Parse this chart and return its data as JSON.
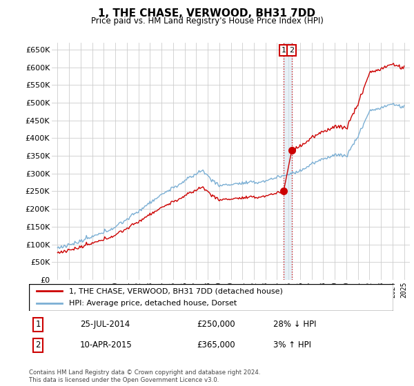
{
  "title": "1, THE CHASE, VERWOOD, BH31 7DD",
  "subtitle": "Price paid vs. HM Land Registry's House Price Index (HPI)",
  "ylim": [
    0,
    670000
  ],
  "yticks": [
    0,
    50000,
    100000,
    150000,
    200000,
    250000,
    300000,
    350000,
    400000,
    450000,
    500000,
    550000,
    600000,
    650000
  ],
  "legend_line1": "1, THE CHASE, VERWOOD, BH31 7DD (detached house)",
  "legend_line2": "HPI: Average price, detached house, Dorset",
  "transaction1_label": "1",
  "transaction1_date": "25-JUL-2014",
  "transaction1_price": "£250,000",
  "transaction1_hpi": "28% ↓ HPI",
  "transaction2_label": "2",
  "transaction2_date": "10-APR-2015",
  "transaction2_price": "£365,000",
  "transaction2_hpi": "3% ↑ HPI",
  "footnote": "Contains HM Land Registry data © Crown copyright and database right 2024.\nThis data is licensed under the Open Government Licence v3.0.",
  "hpi_color": "#7bafd4",
  "price_color": "#cc0000",
  "marker_color": "#cc0000",
  "vline_color": "#cc0000",
  "box_color": "#cc0000",
  "background_color": "#ffffff",
  "grid_color": "#cccccc",
  "transaction1_x": 2014.57,
  "transaction2_x": 2015.27,
  "price_t1": 250000,
  "price_t2": 365000
}
